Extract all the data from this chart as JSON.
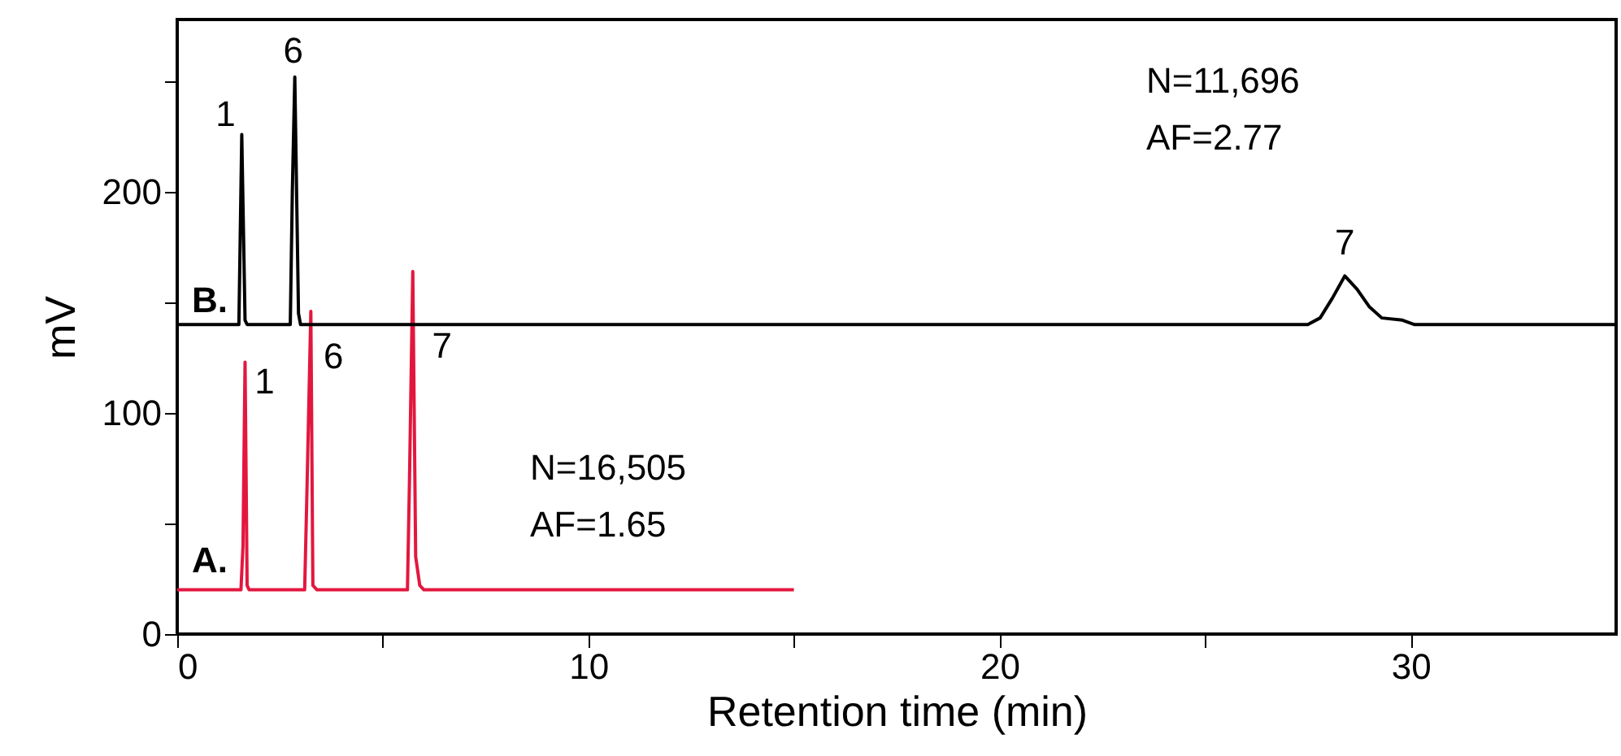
{
  "chart_data": {
    "type": "line",
    "xlabel": "Retention time (min)",
    "ylabel": "mV",
    "xlim": [
      0,
      35
    ],
    "ylim": [
      0,
      278
    ],
    "xticks": [
      0,
      {
        "value": 5,
        "label": null
      },
      10,
      {
        "value": 15,
        "label": null
      },
      20,
      {
        "value": 25,
        "label": null
      },
      30
    ],
    "yticks": [
      0,
      {
        "value": 50,
        "label": null
      },
      100,
      {
        "value": 150,
        "label": null
      },
      200,
      {
        "value": 250,
        "label": null
      }
    ],
    "grid": false,
    "marker": "none",
    "line_style": "solid",
    "series": [
      {
        "color": "#e3173e",
        "x": [
          0,
          1.55,
          1.6,
          1.65,
          1.7,
          1.75,
          3.1,
          3.15,
          3.25,
          3.3,
          3.4,
          5.6,
          5.65,
          5.73,
          5.8,
          5.9,
          6.0,
          15
        ],
        "values": [
          20,
          20,
          40,
          123,
          22,
          20,
          20,
          60,
          146,
          22,
          20,
          20,
          70,
          164,
          35,
          22,
          20,
          20
        ]
      },
      {
        "color": "#000000",
        "x": [
          0,
          1.5,
          1.57,
          1.65,
          1.7,
          2.75,
          2.8,
          2.86,
          2.95,
          3.0,
          27.5,
          27.8,
          28.1,
          28.4,
          28.7,
          29.0,
          29.3,
          29.8,
          30.1,
          35
        ],
        "values": [
          140,
          140,
          226,
          142,
          140,
          140,
          200,
          252,
          145,
          140,
          140,
          143,
          152,
          162,
          156,
          148,
          143,
          142,
          140,
          140
        ]
      }
    ],
    "annotations": [
      "A.",
      "B.",
      {
        "text": "1",
        "x": 1.57,
        "y": 226
      },
      {
        "text": "6",
        "x": 2.86,
        "y": 252
      },
      {
        "text": "7",
        "x": 28.4,
        "y": 162
      },
      {
        "text": "1",
        "x": 1.65,
        "y": 123
      },
      {
        "text": "6",
        "x": 3.25,
        "y": 146
      },
      {
        "text": "7",
        "x": 5.73,
        "y": 164
      },
      "N=16,505",
      "AF=1.65",
      "N=11,696",
      "AF=2.77"
    ]
  }
}
